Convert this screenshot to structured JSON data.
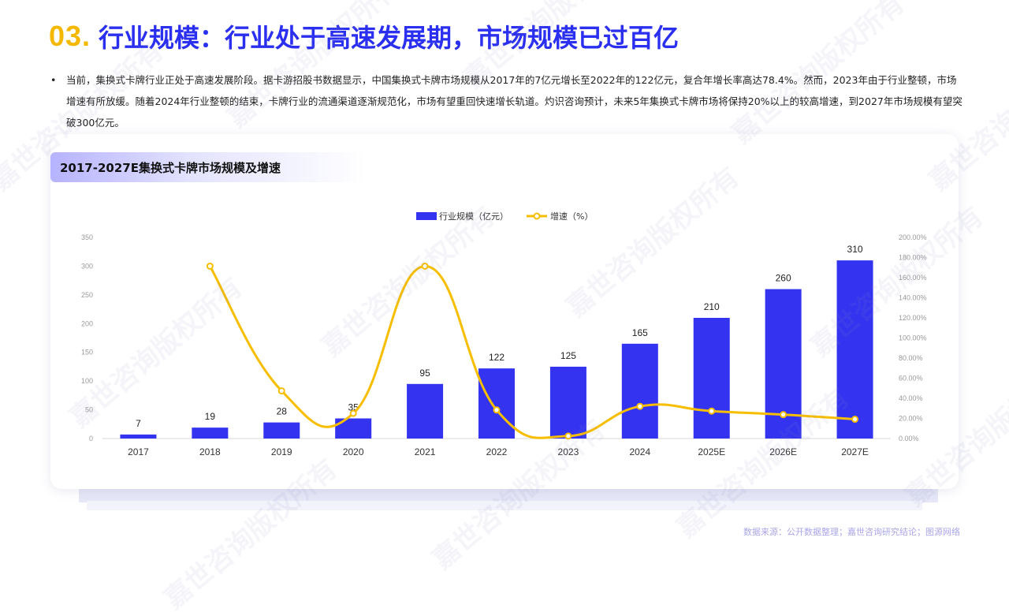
{
  "header": {
    "number": "03.",
    "title": "行业规模：行业处于高速发展期，市场规模已过百亿"
  },
  "bullet": {
    "marker": "•",
    "text": "当前，集换式卡牌行业正处于高速发展阶段。据卡游招股书数据显示，中国集换式卡牌市场规模从2017年的7亿元增长至2022年的122亿元，复合年增长率高达78.4%。然而，2023年由于行业整顿，市场增速有所放缓。随着2024年行业整顿的结束，卡牌行业的流通渠道逐渐规范化，市场有望重回快速增长轨道。灼识咨询预计，未来5年集换式卡牌市场将保持20%以上的较高增速，到2027年市场规模有望突破300亿元。"
  },
  "chart_title": "2017-2027E集换式卡牌市场规模及增速",
  "source": "数据来源：公开数据整理；嘉世咨询研究结论；图源网络",
  "watermark": "嘉世咨询版权所有",
  "colors": {
    "bar": "#3333f0",
    "line": "#f7be00",
    "title_number": "#f5b800",
    "title_text": "#2b2ff0"
  },
  "chart_data": {
    "type": "bar+line",
    "categories": [
      "2017",
      "2018",
      "2019",
      "2020",
      "2021",
      "2022",
      "2023",
      "2024",
      "2025E",
      "2026E",
      "2027E"
    ],
    "series": [
      {
        "name": "行业规模（亿元）",
        "type": "bar",
        "axis": "left",
        "values": [
          7,
          19,
          28,
          35,
          95,
          122,
          125,
          165,
          210,
          260,
          310
        ]
      },
      {
        "name": "增速（%）",
        "type": "line",
        "axis": "right",
        "smooth": true,
        "values": [
          null,
          171.4,
          47.4,
          25.0,
          171.4,
          28.4,
          2.5,
          32.0,
          27.3,
          23.8,
          19.2
        ]
      }
    ],
    "y_left": {
      "min": 0,
      "max": 350,
      "ticks": [
        "0",
        "50",
        "100",
        "150",
        "200",
        "250",
        "300",
        "350"
      ]
    },
    "y_right": {
      "min": 0,
      "max": 200,
      "ticks": [
        "0.00%",
        "20.00%",
        "40.00%",
        "60.00%",
        "80.00%",
        "100.00%",
        "120.00%",
        "140.00%",
        "160.00%",
        "180.00%",
        "200.00%"
      ]
    },
    "legend_position": "top-center",
    "grid": false
  }
}
